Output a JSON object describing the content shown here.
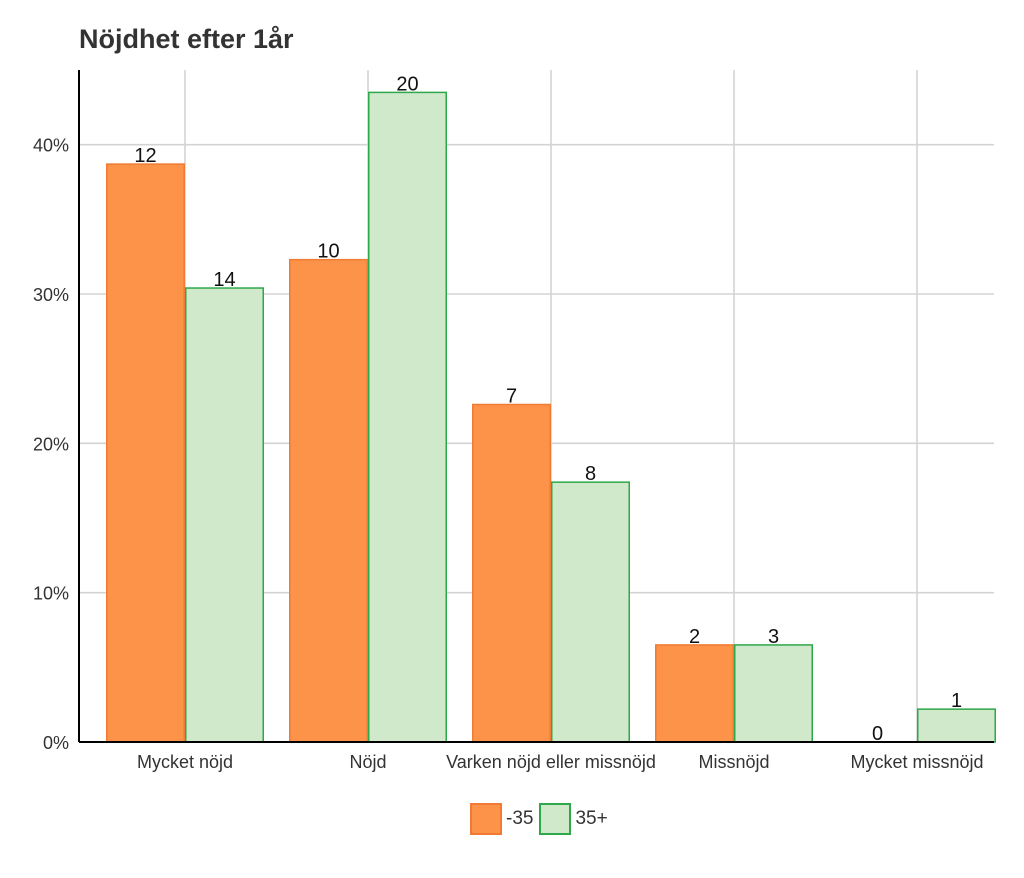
{
  "chart_data": {
    "type": "bar",
    "title": "Nöjdhet efter 1år",
    "xlabel": "",
    "ylabel": "",
    "categories": [
      "Mycket nöjd",
      "Nöjd",
      "Varken nöjd eller missnöjd",
      "Missnöjd",
      "Mycket missnöjd"
    ],
    "series": [
      {
        "name": "-35",
        "values": [
          38.7,
          32.3,
          22.6,
          6.5,
          0.0
        ],
        "labels": [
          "12",
          "10",
          "7",
          "2",
          "0"
        ],
        "fill": "#fd9249",
        "stroke": "#f07b35"
      },
      {
        "name": "35+",
        "values": [
          30.4,
          43.5,
          17.4,
          6.5,
          2.2
        ],
        "labels": [
          "14",
          "20",
          "8",
          "3",
          "1"
        ],
        "fill": "#cfe9ca",
        "stroke": "#2ea84a"
      }
    ],
    "ylim": [
      0,
      45
    ],
    "yticks": [
      0,
      10,
      20,
      30,
      40
    ],
    "ytick_labels": [
      "0%",
      "10%",
      "20%",
      "30%",
      "40%"
    ],
    "grid": true,
    "legend_position": "bottom"
  }
}
